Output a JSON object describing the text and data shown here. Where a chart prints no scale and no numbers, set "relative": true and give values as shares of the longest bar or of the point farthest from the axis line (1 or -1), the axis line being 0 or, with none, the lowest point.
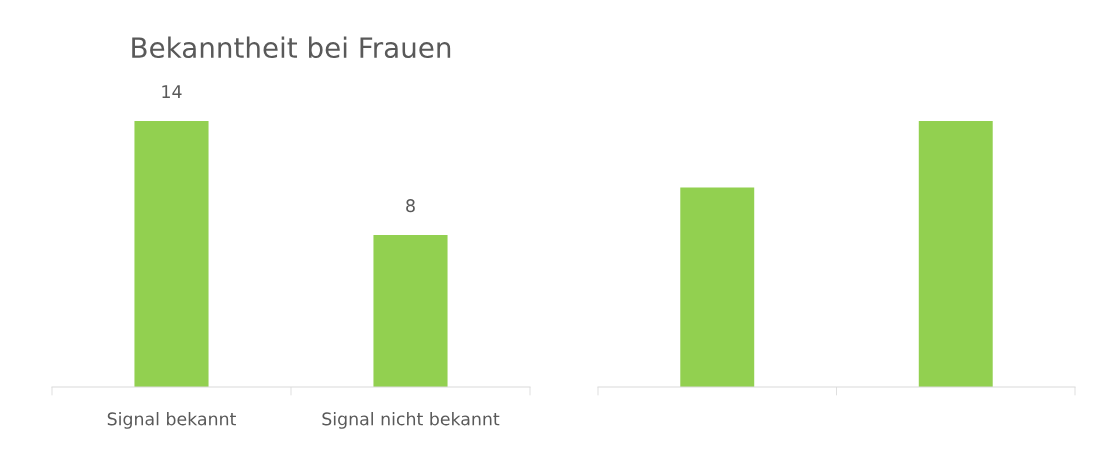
{
  "chart_data": [
    {
      "type": "bar",
      "title": "Bekanntheit bei Frauen",
      "categories": [
        "Signal bekannt",
        "Signal nicht bekannt"
      ],
      "values": [
        14,
        8
      ],
      "color": "#92d050",
      "data_labels": true
    },
    {
      "type": "bar",
      "categories": [
        null,
        null
      ],
      "values": [
        0.75,
        1
      ],
      "color": "#92d050",
      "relative": true
    }
  ]
}
